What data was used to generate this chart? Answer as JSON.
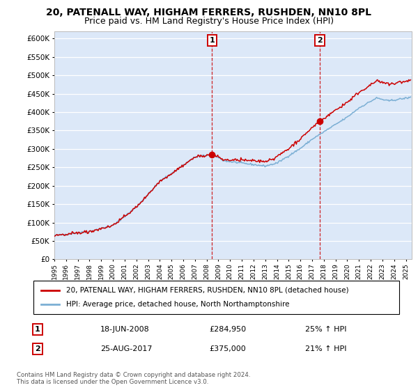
{
  "title1": "20, PATENALL WAY, HIGHAM FERRERS, RUSHDEN, NN10 8PL",
  "title2": "Price paid vs. HM Land Registry's House Price Index (HPI)",
  "legend_line1": "20, PATENALL WAY, HIGHAM FERRERS, RUSHDEN, NN10 8PL (detached house)",
  "legend_line2": "HPI: Average price, detached house, North Northamptonshire",
  "annotation1_label": "1",
  "annotation1_date": "18-JUN-2008",
  "annotation1_price": "£284,950",
  "annotation1_hpi": "25% ↑ HPI",
  "annotation1_year": 2008.46,
  "annotation1_value": 284950,
  "annotation2_label": "2",
  "annotation2_date": "25-AUG-2017",
  "annotation2_price": "£375,000",
  "annotation2_hpi": "21% ↑ HPI",
  "annotation2_year": 2017.65,
  "annotation2_value": 375000,
  "footer": "Contains HM Land Registry data © Crown copyright and database right 2024.\nThis data is licensed under the Open Government Licence v3.0.",
  "ylim": [
    0,
    620000
  ],
  "xlim_start": 1995.0,
  "xlim_end": 2025.5,
  "background_color": "#ffffff",
  "plot_bg_color": "#dce8f8",
  "grid_color": "#ffffff",
  "red_color": "#cc0000",
  "blue_color": "#7bafd4",
  "vline_color": "#cc0000",
  "title_fontsize": 10,
  "subtitle_fontsize": 9
}
